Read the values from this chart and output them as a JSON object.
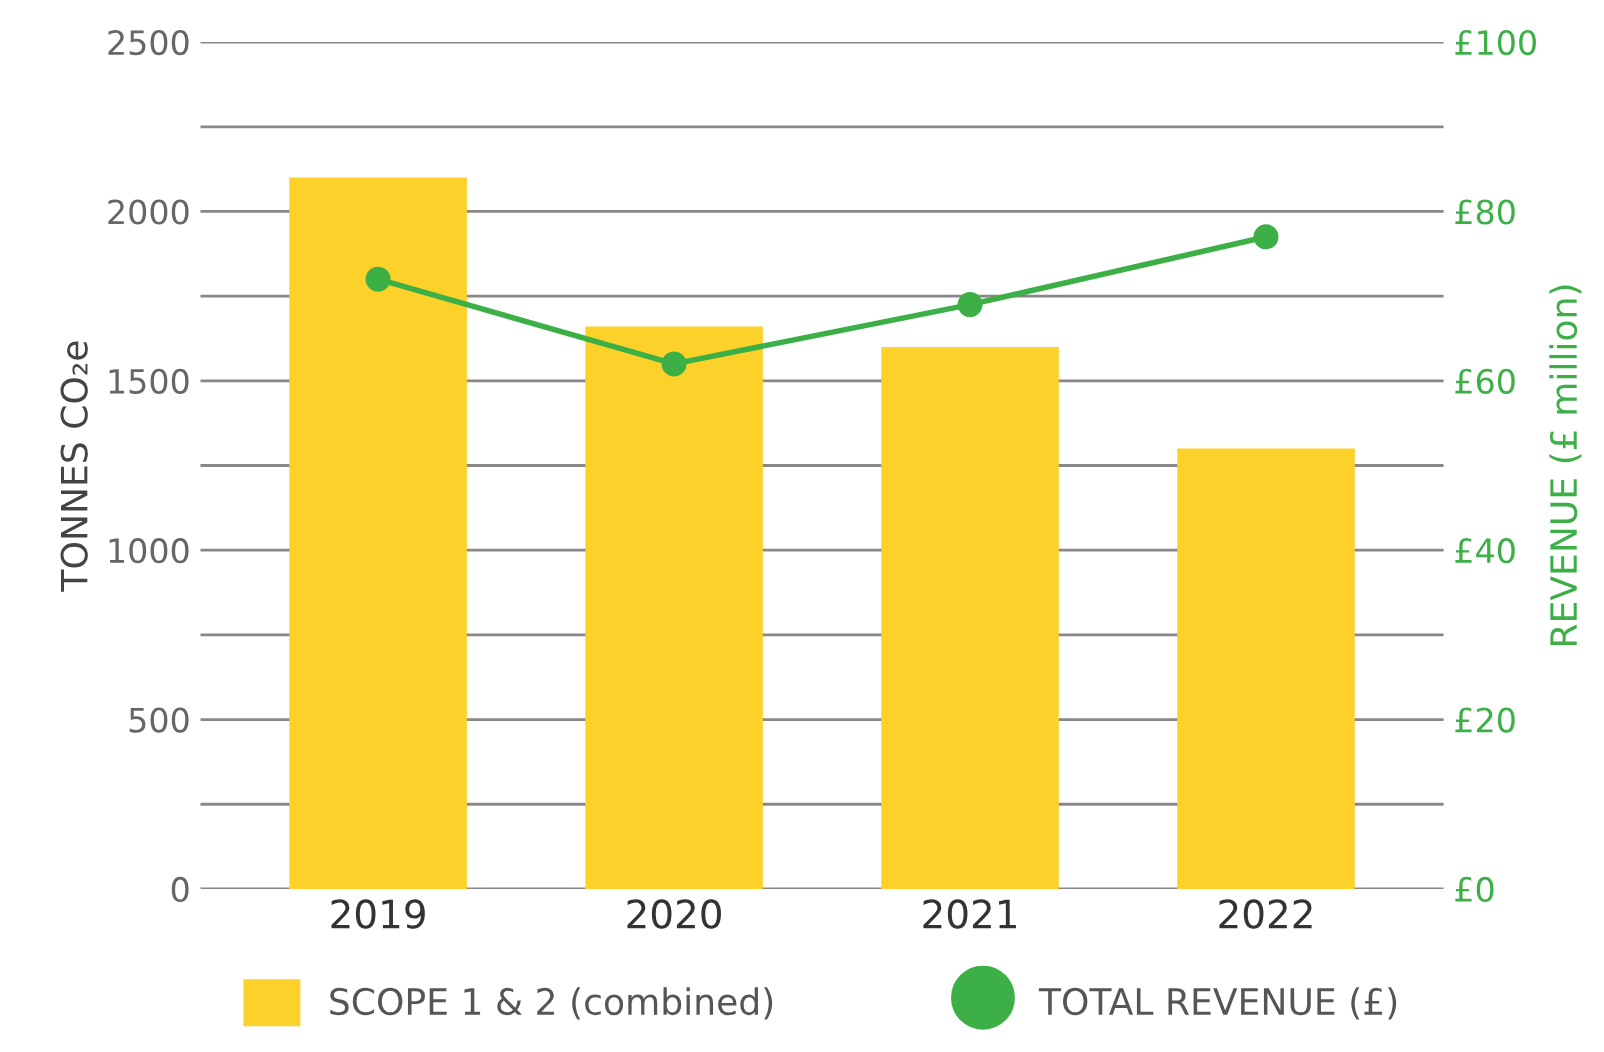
{
  "chart_data": {
    "type": "bar",
    "categories": [
      "2019",
      "2020",
      "2021",
      "2022"
    ],
    "series": [
      {
        "name": "SCOPE 1 & 2 (combined)",
        "color": "#fcd12a",
        "values": [
          2100,
          1660,
          1600,
          1300
        ]
      },
      {
        "name": "TOTAL REVENUE (£)",
        "type": "line",
        "axis": "y2",
        "color": "#3daf47",
        "marker": "circle",
        "values": [
          72,
          62,
          69,
          77
        ]
      }
    ],
    "ylabel": "TONNES CO₂e",
    "y2label": "REVENUE (£ million)",
    "ylim": [
      0,
      2500
    ],
    "yticks": [
      0,
      {
        "value": 250,
        "label": null
      },
      500,
      {
        "value": 750,
        "label": null
      },
      1000,
      {
        "value": 1250,
        "label": null
      },
      1500,
      {
        "value": 1750,
        "label": null
      },
      2000,
      {
        "value": 2250,
        "label": null
      },
      2500
    ],
    "y2lim": [
      0,
      100
    ],
    "y2ticks": [
      {
        "value": 0,
        "label": "£0"
      },
      {
        "value": 20,
        "label": "£20"
      },
      {
        "value": 40,
        "label": "£40"
      },
      {
        "value": 60,
        "label": "£60"
      },
      {
        "value": 80,
        "label": "£80"
      },
      {
        "value": 100,
        "label": "£100"
      }
    ],
    "grid": "y",
    "legend": "bottom"
  }
}
